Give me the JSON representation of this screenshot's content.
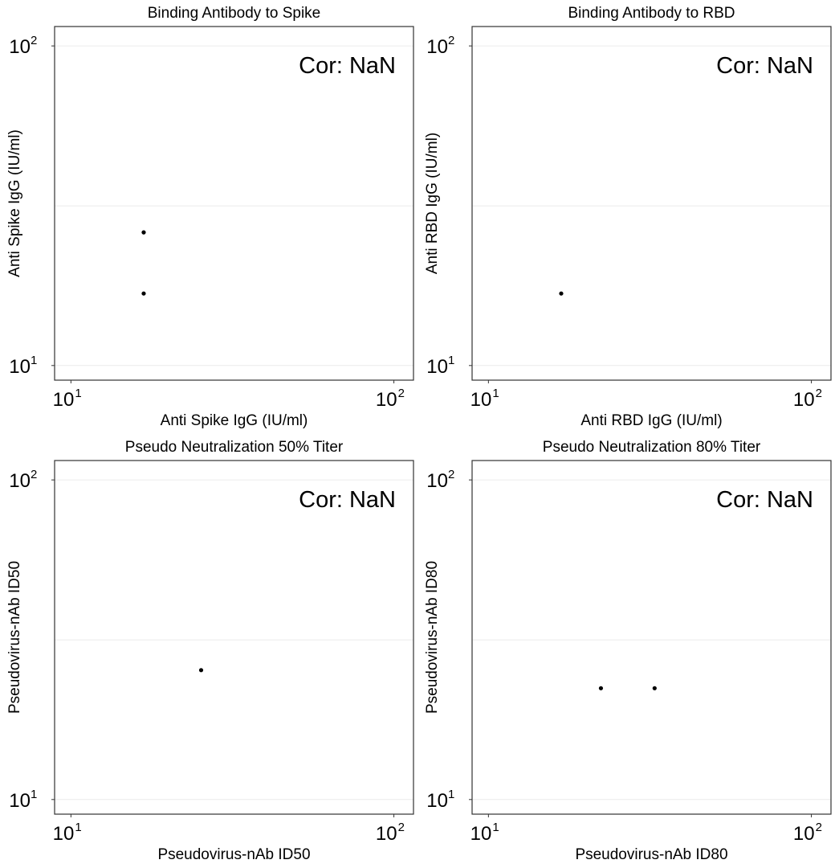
{
  "chart_data": [
    {
      "type": "scatter",
      "title": "Binding Antibody to Spike",
      "xlabel": "Anti Spike IgG (IU/ml)",
      "ylabel": "Anti Spike IgG (IU/ml)",
      "x_scale": "log10",
      "y_scale": "log10",
      "xlim": [
        8.9,
        115
      ],
      "ylim": [
        9.0,
        115
      ],
      "x_ticks": [
        {
          "base": "10",
          "exp": "1",
          "value": 10
        },
        {
          "base": "10",
          "exp": "2",
          "value": 100
        }
      ],
      "y_ticks": [
        {
          "base": "10",
          "exp": "1",
          "value": 10
        },
        {
          "base": "10",
          "exp": "2",
          "value": 100
        }
      ],
      "y_minor_gridlines": [
        31.6
      ],
      "grid": true,
      "annotation": "Cor: NaN",
      "points": [
        {
          "x": 16.8,
          "y": 26.1
        },
        {
          "x": 16.8,
          "y": 16.8
        }
      ]
    },
    {
      "type": "scatter",
      "title": "Binding Antibody to RBD",
      "xlabel": "Anti RBD IgG (IU/ml)",
      "ylabel": "Anti RBD IgG (IU/ml)",
      "x_scale": "log10",
      "y_scale": "log10",
      "xlim": [
        8.9,
        115
      ],
      "ylim": [
        9.0,
        115
      ],
      "x_ticks": [
        {
          "base": "10",
          "exp": "1",
          "value": 10
        },
        {
          "base": "10",
          "exp": "2",
          "value": 100
        }
      ],
      "y_ticks": [
        {
          "base": "10",
          "exp": "1",
          "value": 10
        },
        {
          "base": "10",
          "exp": "2",
          "value": 100
        }
      ],
      "y_minor_gridlines": [
        31.6
      ],
      "grid": true,
      "annotation": "Cor: NaN",
      "points": [
        {
          "x": 16.8,
          "y": 16.8
        }
      ]
    },
    {
      "type": "scatter",
      "title": "Pseudo Neutralization 50% Titer",
      "xlabel": "Pseudovirus-nAb ID50",
      "ylabel": "Pseudovirus-nAb ID50",
      "x_scale": "log10",
      "y_scale": "log10",
      "xlim": [
        8.9,
        115
      ],
      "ylim": [
        9.0,
        115
      ],
      "x_ticks": [
        {
          "base": "10",
          "exp": "1",
          "value": 10
        },
        {
          "base": "10",
          "exp": "2",
          "value": 100
        }
      ],
      "y_ticks": [
        {
          "base": "10",
          "exp": "1",
          "value": 10
        },
        {
          "base": "10",
          "exp": "2",
          "value": 100
        }
      ],
      "y_minor_gridlines": [
        31.6
      ],
      "grid": true,
      "annotation": "Cor: NaN",
      "points": [
        {
          "x": 25.3,
          "y": 25.4
        }
      ]
    },
    {
      "type": "scatter",
      "title": "Pseudo Neutralization 80% Titer",
      "xlabel": "Pseudovirus-nAb ID80",
      "ylabel": "Pseudovirus-nAb ID80",
      "x_scale": "log10",
      "y_scale": "log10",
      "xlim": [
        8.9,
        115
      ],
      "ylim": [
        9.0,
        115
      ],
      "x_ticks": [
        {
          "base": "10",
          "exp": "1",
          "value": 10
        },
        {
          "base": "10",
          "exp": "2",
          "value": 100
        }
      ],
      "y_ticks": [
        {
          "base": "10",
          "exp": "1",
          "value": 10
        },
        {
          "base": "10",
          "exp": "2",
          "value": 100
        }
      ],
      "y_minor_gridlines": [
        31.6
      ],
      "grid": true,
      "annotation": "Cor: NaN",
      "points": [
        {
          "x": 22.3,
          "y": 22.3
        },
        {
          "x": 32.7,
          "y": 22.3
        }
      ]
    }
  ],
  "colors": {
    "point": "#000000",
    "gridline": "#ebebeb",
    "panel_border": "#333333",
    "text": "#000000"
  }
}
